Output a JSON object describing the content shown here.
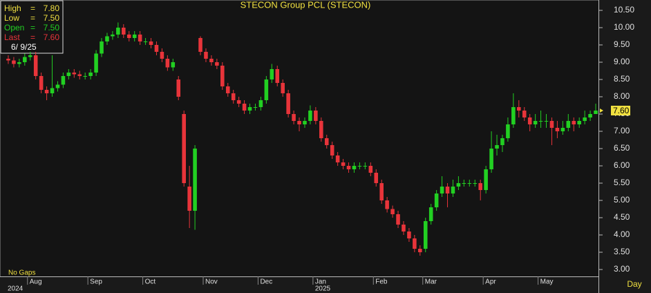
{
  "chart_data": {
    "type": "candlestick",
    "title": "STECON Group PCL (STECON)",
    "categories": [
      null,
      null,
      null,
      null,
      "Aug",
      null,
      null,
      null,
      null,
      null,
      null,
      null,
      null,
      null,
      null,
      "Sep",
      null,
      null,
      null,
      null,
      null,
      null,
      null,
      null,
      null,
      "Oct",
      null,
      null,
      null,
      null,
      null,
      null,
      null,
      null,
      null,
      null,
      "Nov",
      null,
      null,
      null,
      null,
      null,
      null,
      null,
      null,
      null,
      "Dec",
      null,
      null,
      null,
      null,
      null,
      null,
      null,
      null,
      null,
      "Jan",
      null,
      null,
      null,
      null,
      null,
      null,
      null,
      null,
      null,
      null,
      "Feb",
      null,
      null,
      null,
      null,
      null,
      null,
      null,
      null,
      "Mar",
      null,
      null,
      null,
      null,
      null,
      null,
      null,
      null,
      null,
      null,
      "Apr",
      null,
      null,
      null,
      null,
      null,
      null,
      null,
      null,
      null,
      "May",
      null,
      null,
      null,
      null,
      null,
      null,
      null,
      null,
      null,
      null
    ],
    "years": [
      "2024",
      null,
      null,
      null,
      null,
      null,
      null,
      null,
      null,
      null,
      null,
      null,
      null,
      null,
      null,
      null,
      null,
      null,
      null,
      null,
      null,
      null,
      null,
      null,
      null,
      null,
      null,
      null,
      null,
      null,
      null,
      null,
      null,
      null,
      null,
      null,
      null,
      null,
      null,
      null,
      null,
      null,
      null,
      null,
      null,
      null,
      null,
      null,
      null,
      null,
      null,
      null,
      null,
      null,
      null,
      null,
      "2025",
      null,
      null,
      null,
      null,
      null,
      null,
      null,
      null,
      null,
      null,
      null,
      null,
      null,
      null,
      null,
      null,
      null,
      null,
      null,
      null,
      null,
      null,
      null,
      null,
      null,
      null,
      null,
      null,
      null,
      null,
      null,
      null,
      null,
      null,
      null,
      null,
      null,
      null,
      null,
      null,
      null,
      null,
      null,
      null,
      null,
      null,
      null
    ],
    "series": [
      {
        "color_up": "#22d022",
        "color_down": "#e8343a",
        "last_label": "7.60",
        "open": [
          9.1,
          9.05,
          8.95,
          9.0,
          9.15,
          9.2,
          8.6,
          8.2,
          8.1,
          8.25,
          8.35,
          8.6,
          8.7,
          8.65,
          8.6,
          8.6,
          8.7,
          9.25,
          9.6,
          9.75,
          9.8,
          10.0,
          9.8,
          9.7,
          9.8,
          9.6,
          9.6,
          9.5,
          9.3,
          9.1,
          8.85,
          8.5,
          7.5,
          5.4,
          4.7,
          9.7,
          9.3,
          9.1,
          9.0,
          8.9,
          8.3,
          8.1,
          7.9,
          7.8,
          7.6,
          7.7,
          7.7,
          7.9,
          8.5,
          8.8,
          8.4,
          8.1,
          7.5,
          7.3,
          7.2,
          7.3,
          7.6,
          7.3,
          6.8,
          6.6,
          6.3,
          6.1,
          6.0,
          5.9,
          6.0,
          6.0,
          6.0,
          5.8,
          5.5,
          5.0,
          4.75,
          4.6,
          4.3,
          4.1,
          3.9,
          3.6,
          3.6,
          4.4,
          4.8,
          5.2,
          5.4,
          5.2,
          5.4,
          5.5,
          5.5,
          5.5,
          5.5,
          5.3,
          5.9,
          6.5,
          6.6,
          6.8,
          7.2,
          7.7,
          7.6,
          7.4,
          7.2,
          7.3,
          7.3,
          7.3,
          7.1,
          7.0,
          7.1,
          7.3,
          7.2,
          7.3,
          7.4,
          7.5
        ],
        "high": [
          9.2,
          9.15,
          9.1,
          9.25,
          9.3,
          9.3,
          8.7,
          8.3,
          9.2,
          8.45,
          8.7,
          8.8,
          8.8,
          8.75,
          8.7,
          8.8,
          9.35,
          9.7,
          9.85,
          9.9,
          10.15,
          10.1,
          9.9,
          9.9,
          9.9,
          9.7,
          9.7,
          9.6,
          9.4,
          9.2,
          9.1,
          8.6,
          7.6,
          6.0,
          6.6,
          9.75,
          9.4,
          9.2,
          9.1,
          9.0,
          8.4,
          8.2,
          8.0,
          7.9,
          7.8,
          7.8,
          8.0,
          8.6,
          8.95,
          8.9,
          8.5,
          8.2,
          7.6,
          7.4,
          7.4,
          7.75,
          7.7,
          7.4,
          6.9,
          6.7,
          6.4,
          6.2,
          6.1,
          6.1,
          6.1,
          6.1,
          6.1,
          5.9,
          5.6,
          5.1,
          4.85,
          4.7,
          4.4,
          4.2,
          4.0,
          3.7,
          4.5,
          4.9,
          5.3,
          5.7,
          5.5,
          5.6,
          5.7,
          5.6,
          5.6,
          5.6,
          5.6,
          6.0,
          7.0,
          6.9,
          6.9,
          7.4,
          8.1,
          7.9,
          7.7,
          7.5,
          7.5,
          7.6,
          7.5,
          7.4,
          7.3,
          7.3,
          7.5,
          7.4,
          7.4,
          7.6,
          7.6,
          7.8
        ],
        "low": [
          8.95,
          8.85,
          8.85,
          8.9,
          9.05,
          8.5,
          8.1,
          7.9,
          8.0,
          8.15,
          8.25,
          8.5,
          8.55,
          8.5,
          8.5,
          8.5,
          8.6,
          9.15,
          9.5,
          9.65,
          9.7,
          9.7,
          9.6,
          9.6,
          9.5,
          9.5,
          9.4,
          9.2,
          9.0,
          8.75,
          8.75,
          7.9,
          5.4,
          4.2,
          4.15,
          9.2,
          9.0,
          8.9,
          8.8,
          8.2,
          8.0,
          7.8,
          7.7,
          7.5,
          7.5,
          7.6,
          7.6,
          7.8,
          8.4,
          8.3,
          8.0,
          7.4,
          7.2,
          7.0,
          7.1,
          7.2,
          7.2,
          6.7,
          6.5,
          6.2,
          6.0,
          5.9,
          5.8,
          5.8,
          5.9,
          5.9,
          5.7,
          5.4,
          4.9,
          4.65,
          4.5,
          4.2,
          4.0,
          3.8,
          3.5,
          3.4,
          3.5,
          4.3,
          4.7,
          5.1,
          4.8,
          5.1,
          5.3,
          5.4,
          5.4,
          5.4,
          5.0,
          5.2,
          5.8,
          6.3,
          6.4,
          6.7,
          7.1,
          7.4,
          7.3,
          7.0,
          7.1,
          7.1,
          7.1,
          6.6,
          6.8,
          6.9,
          7.0,
          7.0,
          7.1,
          7.2,
          7.3,
          7.5
        ],
        "close": [
          9.05,
          8.95,
          9.0,
          9.15,
          9.2,
          8.6,
          8.2,
          8.1,
          8.25,
          8.35,
          8.6,
          8.7,
          8.65,
          8.6,
          8.6,
          8.7,
          9.25,
          9.6,
          9.75,
          9.8,
          10.0,
          9.8,
          9.7,
          9.8,
          9.6,
          9.6,
          9.5,
          9.3,
          9.1,
          8.85,
          9.0,
          8.0,
          5.5,
          4.7,
          6.5,
          9.3,
          9.1,
          9.0,
          8.9,
          8.3,
          8.1,
          7.9,
          7.8,
          7.6,
          7.7,
          7.7,
          7.9,
          8.5,
          8.8,
          8.4,
          8.1,
          7.5,
          7.3,
          7.2,
          7.3,
          7.6,
          7.3,
          6.8,
          6.6,
          6.3,
          6.1,
          6.0,
          5.9,
          6.0,
          6.0,
          6.0,
          5.8,
          5.5,
          5.0,
          4.75,
          4.6,
          4.3,
          4.1,
          3.9,
          3.6,
          3.5,
          4.4,
          4.8,
          5.2,
          5.4,
          5.2,
          5.4,
          5.5,
          5.5,
          5.5,
          5.5,
          5.3,
          5.9,
          6.5,
          6.6,
          6.8,
          7.2,
          7.7,
          7.6,
          7.4,
          7.2,
          7.3,
          7.3,
          7.3,
          7.1,
          7.0,
          7.1,
          7.3,
          7.2,
          7.3,
          7.4,
          7.5,
          7.6
        ]
      }
    ],
    "ylim": [
      2.8,
      10.8
    ],
    "yticks": [
      {
        "value": 3,
        "label": "3.00"
      },
      {
        "value": 3.5,
        "label": "3.50"
      },
      {
        "value": 4,
        "label": "4.00"
      },
      {
        "value": 4.5,
        "label": "4.50"
      },
      {
        "value": 5,
        "label": "5.00"
      },
      {
        "value": 5.5,
        "label": "5.50"
      },
      {
        "value": 6,
        "label": "6.00"
      },
      {
        "value": 6.5,
        "label": "6.50"
      },
      {
        "value": 7,
        "label": "7.00"
      },
      {
        "value": 7.5,
        "label": "7.50"
      },
      {
        "value": 8,
        "label": "8.00"
      },
      {
        "value": 8.5,
        "label": "8.50"
      },
      {
        "value": 9,
        "label": "9.00"
      },
      {
        "value": 9.5,
        "label": "9.50"
      },
      {
        "value": 10,
        "label": "10.00"
      },
      {
        "value": 10.5,
        "label": "10.50"
      }
    ],
    "grid": false,
    "info": {
      "separator": "=",
      "rows": [
        {
          "label": "High",
          "value": "7.80",
          "color": "#f0e040"
        },
        {
          "label": "Low",
          "value": "7.50",
          "color": "#f0e040"
        },
        {
          "label": "Open",
          "value": "7.50",
          "color": "#22d022"
        },
        {
          "label": "Last",
          "value": "7.60",
          "color": "#e8343a"
        }
      ],
      "date": "6/ 9/25"
    },
    "note": "No Gaps",
    "period": "Day"
  }
}
